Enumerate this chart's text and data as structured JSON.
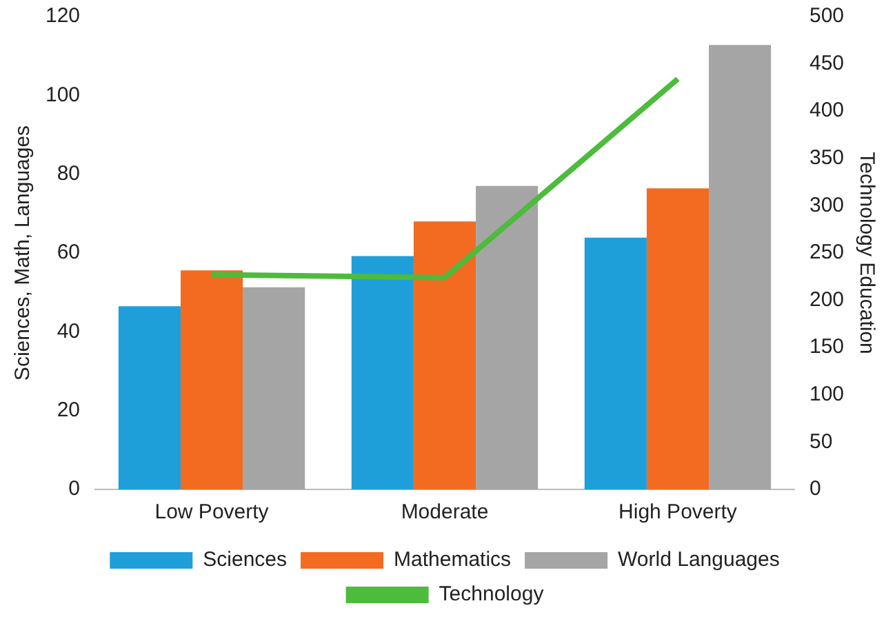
{
  "chart_data": {
    "type": "bar",
    "categories": [
      "Low Poverty",
      "Moderate",
      "High Poverty"
    ],
    "ylabel": "Sciences, Math, Languages",
    "y2label": "Technology Education",
    "series": [
      {
        "name": "Sciences",
        "color": "#1f9fd9",
        "values": [
          46.5,
          59.2,
          63.9
        ]
      },
      {
        "name": "Mathematics",
        "color": "#f26b21",
        "values": [
          55.6,
          68,
          76.4
        ]
      },
      {
        "name": "World Languages",
        "color": "#a5a5a5",
        "values": [
          51.3,
          77,
          112.8
        ]
      },
      {
        "name": "Technology",
        "type": "line",
        "axis": "y2",
        "color": "#4dbb3b",
        "values": [
          227,
          224,
          434
        ]
      }
    ],
    "ylim": [
      0,
      120
    ],
    "yticks": [
      0,
      20,
      40,
      60,
      80,
      100,
      120
    ],
    "y2lim": [
      0,
      500
    ],
    "y2ticks": [
      0,
      50,
      100,
      150,
      200,
      250,
      300,
      350,
      400,
      450,
      500
    ],
    "legend": "bottom",
    "marker": "none",
    "grid": false
  }
}
